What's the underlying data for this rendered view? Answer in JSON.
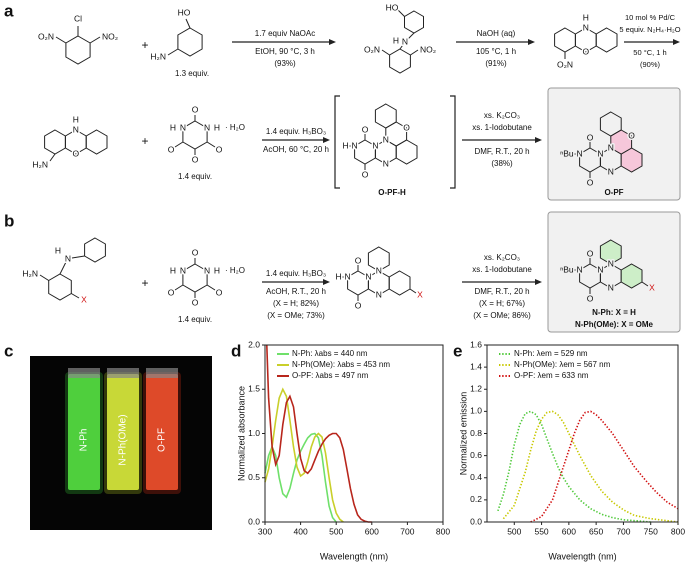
{
  "panel_labels": [
    "a",
    "b",
    "c",
    "d",
    "e"
  ],
  "scheme_a": {
    "row1": {
      "sm1_atoms": [
        "Cl",
        "O₂N",
        "NO₂"
      ],
      "plus": "+",
      "sm2_atoms": [
        "HO",
        "H₂N"
      ],
      "sm2_amount": "1.3 equiv.",
      "step1": [
        "1.7 equiv NaOAc",
        "EtOH, 90 °C, 3 h",
        "(93%)"
      ],
      "int1_atoms": [
        "HO",
        "H",
        "N",
        "O₂N",
        "NO₂"
      ],
      "step2": [
        "NaOH (aq)",
        "105 °C, 1 h",
        "(91%)"
      ],
      "int2_atoms": [
        "H",
        "N",
        "O",
        "O₂N"
      ],
      "step3": [
        "10 mol % Pd/C",
        "5 equiv. N₂H₄·H₂O",
        "50 °C, 1 h",
        "(90%)"
      ]
    },
    "row2": {
      "sm_atoms": [
        "H",
        "N",
        "O",
        "H₂N"
      ],
      "plus": "+",
      "alloxan_atoms": [
        "O",
        "H",
        "N",
        "N",
        "H",
        "O",
        "O",
        "O",
        "· H₂O"
      ],
      "alloxan_amount": "1.4 equiv.",
      "step1": [
        "1.4 equiv. H₃BO₃",
        "AcOH, 60 °C, 20 h"
      ],
      "int_atoms": [
        "O",
        "H",
        "N",
        "N",
        "O",
        "N",
        "N",
        "O"
      ],
      "int_label": "O-PF-H",
      "step2": [
        "xs. K₂CO₃",
        "xs. 1-Iodobutane",
        "DMF, R.T., 20 h",
        "(38%)"
      ],
      "product_atoms": [
        "O",
        "ⁿBu",
        "N",
        "N",
        "O",
        "N",
        "N",
        "O"
      ],
      "product_label": "O-PF"
    }
  },
  "scheme_b": {
    "sm_atoms": [
      "H",
      "N",
      "H₂N",
      "X"
    ],
    "plus": "+",
    "alloxan_atoms": [
      "O",
      "H",
      "N",
      "N",
      "H",
      "O",
      "O",
      "O",
      "· H₂O"
    ],
    "alloxan_amount": "1.4 equiv.",
    "step1": [
      "1.4 equiv. H₃BO₃",
      "AcOH, R.T., 20 h",
      "(X = H; 82%)",
      "(X = OMe; 73%)"
    ],
    "int_atoms": [
      "O",
      "H",
      "N",
      "N",
      "O",
      "N",
      "N",
      "X"
    ],
    "step2": [
      "xs. K₂CO₃",
      "xs. 1-Iodobutane",
      "DMF, R.T., 20 h",
      "(X = H; 67%)",
      "(X = OMe; 86%)"
    ],
    "product_atoms": [
      "O",
      "ⁿBu",
      "N",
      "N",
      "O",
      "N",
      "N",
      "X"
    ],
    "product_labels": [
      "N-Ph: X = H",
      "N-Ph(OMe): X = OMe"
    ]
  },
  "photo": {
    "labels": [
      "N-Ph",
      "N-Ph(OMe)",
      "O-PF"
    ]
  },
  "chart_data": [
    {
      "type": "line",
      "xlabel": "Wavelength (nm)",
      "ylabel": "Normalized absorbance",
      "xlim": [
        300,
        800
      ],
      "ylim": [
        0,
        2
      ],
      "xticks": [
        300,
        400,
        500,
        600,
        700,
        800
      ],
      "yticks": [
        {
          "value": 0,
          "label": "0.0"
        },
        0.5,
        {
          "value": 1,
          "label": "1.0"
        },
        1.5,
        {
          "value": 2,
          "label": "2.0"
        }
      ],
      "line_style": "solid",
      "series": [
        {
          "name": "N-Ph: λabs = 440 nm",
          "color": "#6fe06a",
          "x": [
            300,
            310,
            320,
            330,
            340,
            350,
            360,
            370,
            380,
            390,
            400,
            410,
            420,
            430,
            440,
            450,
            460,
            470,
            480,
            490,
            500
          ],
          "values": [
            0.55,
            0.75,
            0.85,
            0.75,
            0.5,
            0.32,
            0.28,
            0.38,
            0.55,
            0.7,
            0.8,
            0.88,
            0.95,
            0.99,
            1.0,
            0.95,
            0.75,
            0.45,
            0.18,
            0.05,
            0.0
          ]
        },
        {
          "name": "N-Ph(OMe): λabs = 453 nm",
          "color": "#c9cf2a",
          "x": [
            300,
            310,
            320,
            330,
            340,
            350,
            360,
            370,
            380,
            390,
            400,
            410,
            420,
            430,
            440,
            450,
            460,
            470,
            480,
            490,
            500,
            510,
            520
          ],
          "values": [
            0.45,
            0.6,
            0.85,
            1.15,
            1.4,
            1.5,
            1.42,
            1.15,
            0.85,
            0.62,
            0.52,
            0.55,
            0.68,
            0.85,
            0.96,
            1.0,
            0.96,
            0.78,
            0.5,
            0.25,
            0.1,
            0.03,
            0.0
          ]
        },
        {
          "name": "O-PF: λabs = 497 nm",
          "color": "#b8261c",
          "x": [
            305,
            310,
            320,
            330,
            340,
            350,
            360,
            370,
            380,
            390,
            400,
            410,
            420,
            430,
            440,
            450,
            460,
            470,
            480,
            490,
            500,
            510,
            520,
            530,
            540,
            550,
            560,
            570,
            580,
            590,
            600
          ],
          "values": [
            2.0,
            1.4,
            0.85,
            0.65,
            0.75,
            1.1,
            1.35,
            1.42,
            1.3,
            1.0,
            0.72,
            0.58,
            0.55,
            0.6,
            0.7,
            0.8,
            0.88,
            0.94,
            0.98,
            1.0,
            1.0,
            0.95,
            0.82,
            0.6,
            0.38,
            0.2,
            0.08,
            0.03,
            0.01,
            0.0,
            0.0
          ]
        }
      ]
    },
    {
      "type": "line",
      "xlabel": "Wavelength (nm)",
      "ylabel": "Normalized emission",
      "xlim": [
        450,
        800
      ],
      "ylim": [
        0,
        1.6
      ],
      "xticks": [
        500,
        550,
        600,
        650,
        700,
        750,
        800
      ],
      "yticks": [
        {
          "value": 0,
          "label": "0.0"
        },
        0.2,
        0.4,
        0.6,
        0.8,
        {
          "value": 1,
          "label": "1.0"
        },
        1.2,
        1.4,
        1.6
      ],
      "line_style": "dotted",
      "series": [
        {
          "name": "N-Ph: λem = 529 nm",
          "color": "#4fc93a",
          "x": [
            470,
            480,
            490,
            500,
            510,
            520,
            530,
            540,
            550,
            560,
            570,
            580,
            590,
            600,
            620,
            640,
            660,
            680,
            700,
            750
          ],
          "values": [
            0.1,
            0.25,
            0.45,
            0.7,
            0.88,
            0.98,
            1.0,
            0.97,
            0.88,
            0.75,
            0.62,
            0.5,
            0.4,
            0.32,
            0.2,
            0.12,
            0.07,
            0.04,
            0.02,
            0.0
          ]
        },
        {
          "name": "N-Ph(OMe): λem = 567 nm",
          "color": "#c8c800",
          "x": [
            480,
            500,
            520,
            530,
            540,
            550,
            560,
            570,
            580,
            590,
            600,
            620,
            640,
            660,
            680,
            700,
            720,
            750,
            800
          ],
          "values": [
            0.03,
            0.15,
            0.45,
            0.65,
            0.82,
            0.93,
            0.99,
            1.0,
            0.97,
            0.9,
            0.8,
            0.6,
            0.42,
            0.28,
            0.18,
            0.11,
            0.06,
            0.03,
            0.0
          ]
        },
        {
          "name": "O-PF: λem = 633 nm",
          "color": "#d10f0f",
          "x": [
            530,
            550,
            570,
            590,
            600,
            610,
            620,
            630,
            640,
            650,
            660,
            680,
            700,
            720,
            740,
            760,
            780,
            800
          ],
          "values": [
            0.0,
            0.05,
            0.2,
            0.5,
            0.65,
            0.8,
            0.92,
            0.99,
            1.0,
            0.97,
            0.92,
            0.8,
            0.65,
            0.5,
            0.38,
            0.27,
            0.18,
            0.12
          ]
        }
      ]
    }
  ]
}
